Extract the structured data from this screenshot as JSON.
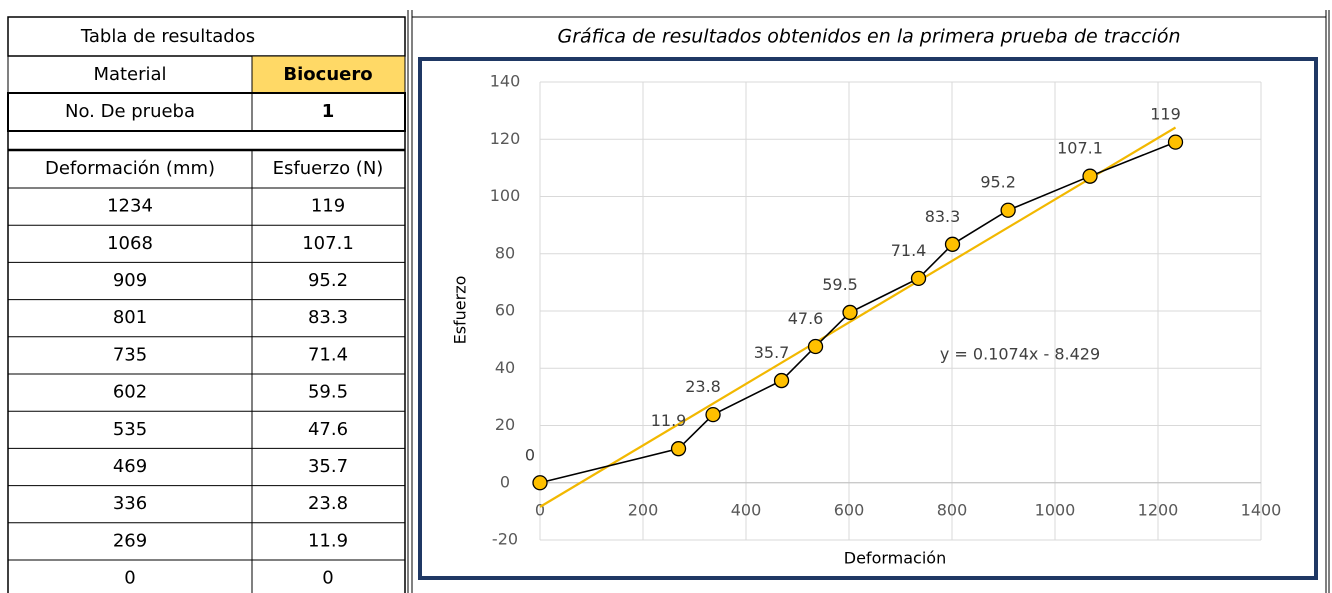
{
  "table": {
    "title": "Tabla de resultados",
    "material_label": "Material",
    "material_value": "Biocuero",
    "test_label": "No. De prueba",
    "test_value": "1",
    "headers": [
      "Deformación (mm)",
      "Esfuerzo (N)"
    ],
    "rows": [
      [
        1234,
        119
      ],
      [
        1068,
        107.1
      ],
      [
        909,
        95.2
      ],
      [
        801,
        83.3
      ],
      [
        735,
        71.4
      ],
      [
        602,
        59.5
      ],
      [
        535,
        47.6
      ],
      [
        469,
        35.7
      ],
      [
        336,
        23.8
      ],
      [
        269,
        11.9
      ],
      [
        0,
        0
      ]
    ]
  },
  "chart_data": {
    "type": "scatter",
    "title": "Gráfica de resultados obtenidos en la primera prueba de tracción",
    "x_label": "Deformación",
    "y_label": "Esfuerzo",
    "x": [
      0,
      269,
      336,
      469,
      535,
      602,
      735,
      801,
      909,
      1068,
      1234
    ],
    "values": [
      0,
      11.9,
      23.8,
      35.7,
      47.6,
      59.5,
      71.4,
      83.3,
      95.2,
      107.1,
      119
    ],
    "color": "#ffc000",
    "line_color": "#000000",
    "trendline": {
      "equation": "y = 0.1074x - 8.429",
      "slope": 0.1074,
      "intercept": -8.429,
      "color": "#f2b800"
    },
    "xlim": [
      0,
      1400
    ],
    "xticks": [
      0,
      200,
      400,
      600,
      800,
      1000,
      1200,
      1400
    ],
    "ylim": [
      -20,
      140
    ],
    "yticks": [
      -20,
      0,
      20,
      40,
      60,
      80,
      100,
      120,
      140
    ],
    "grid": true
  }
}
